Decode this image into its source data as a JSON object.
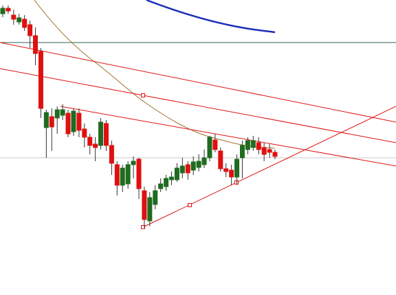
{
  "chart_data": {
    "type": "candlestick",
    "up_color": "#1f6b1f",
    "down_color": "#e01010",
    "ylim": [
      0,
      430
    ],
    "open": [
      410,
      418,
      408,
      398,
      402,
      394,
      378,
      355,
      244,
      260,
      258,
      262,
      265,
      238,
      265,
      242,
      230,
      220,
      218,
      250,
      218,
      190,
      160,
      162,
      190,
      198,
      152,
      108,
      132,
      155,
      158,
      168,
      168,
      178,
      190,
      182,
      186,
      190,
      200,
      226,
      210,
      184,
      182,
      172,
      200,
      212,
      215,
      222,
      215,
      212,
      208
    ],
    "high": [
      422,
      422,
      416,
      410,
      408,
      400,
      390,
      360,
      270,
      272,
      275,
      278,
      270,
      272,
      272,
      250,
      235,
      230,
      258,
      255,
      225,
      195,
      190,
      195,
      202,
      200,
      158,
      150,
      160,
      170,
      175,
      180,
      192,
      200,
      195,
      202,
      205,
      212,
      232,
      235,
      215,
      192,
      190,
      205,
      225,
      230,
      232,
      230,
      222,
      220,
      212
    ],
    "low": [
      405,
      410,
      394,
      394,
      385,
      360,
      335,
      258,
      200,
      210,
      235,
      255,
      230,
      232,
      230,
      215,
      205,
      195,
      212,
      210,
      175,
      145,
      150,
      155,
      170,
      140,
      98,
      100,
      125,
      150,
      152,
      160,
      165,
      170,
      168,
      175,
      180,
      185,
      195,
      208,
      180,
      172,
      160,
      162,
      170,
      205,
      210,
      205,
      195,
      200,
      198
    ],
    "close": [
      418,
      414,
      402,
      404,
      390,
      378,
      352,
      272,
      266,
      245,
      270,
      270,
      235,
      268,
      240,
      230,
      218,
      215,
      252,
      218,
      192,
      160,
      185,
      190,
      195,
      155,
      110,
      142,
      152,
      162,
      170,
      172,
      185,
      188,
      178,
      194,
      195,
      200,
      230,
      212,
      184,
      180,
      172,
      198,
      218,
      225,
      225,
      212,
      205,
      208,
      202
    ]
  }
}
